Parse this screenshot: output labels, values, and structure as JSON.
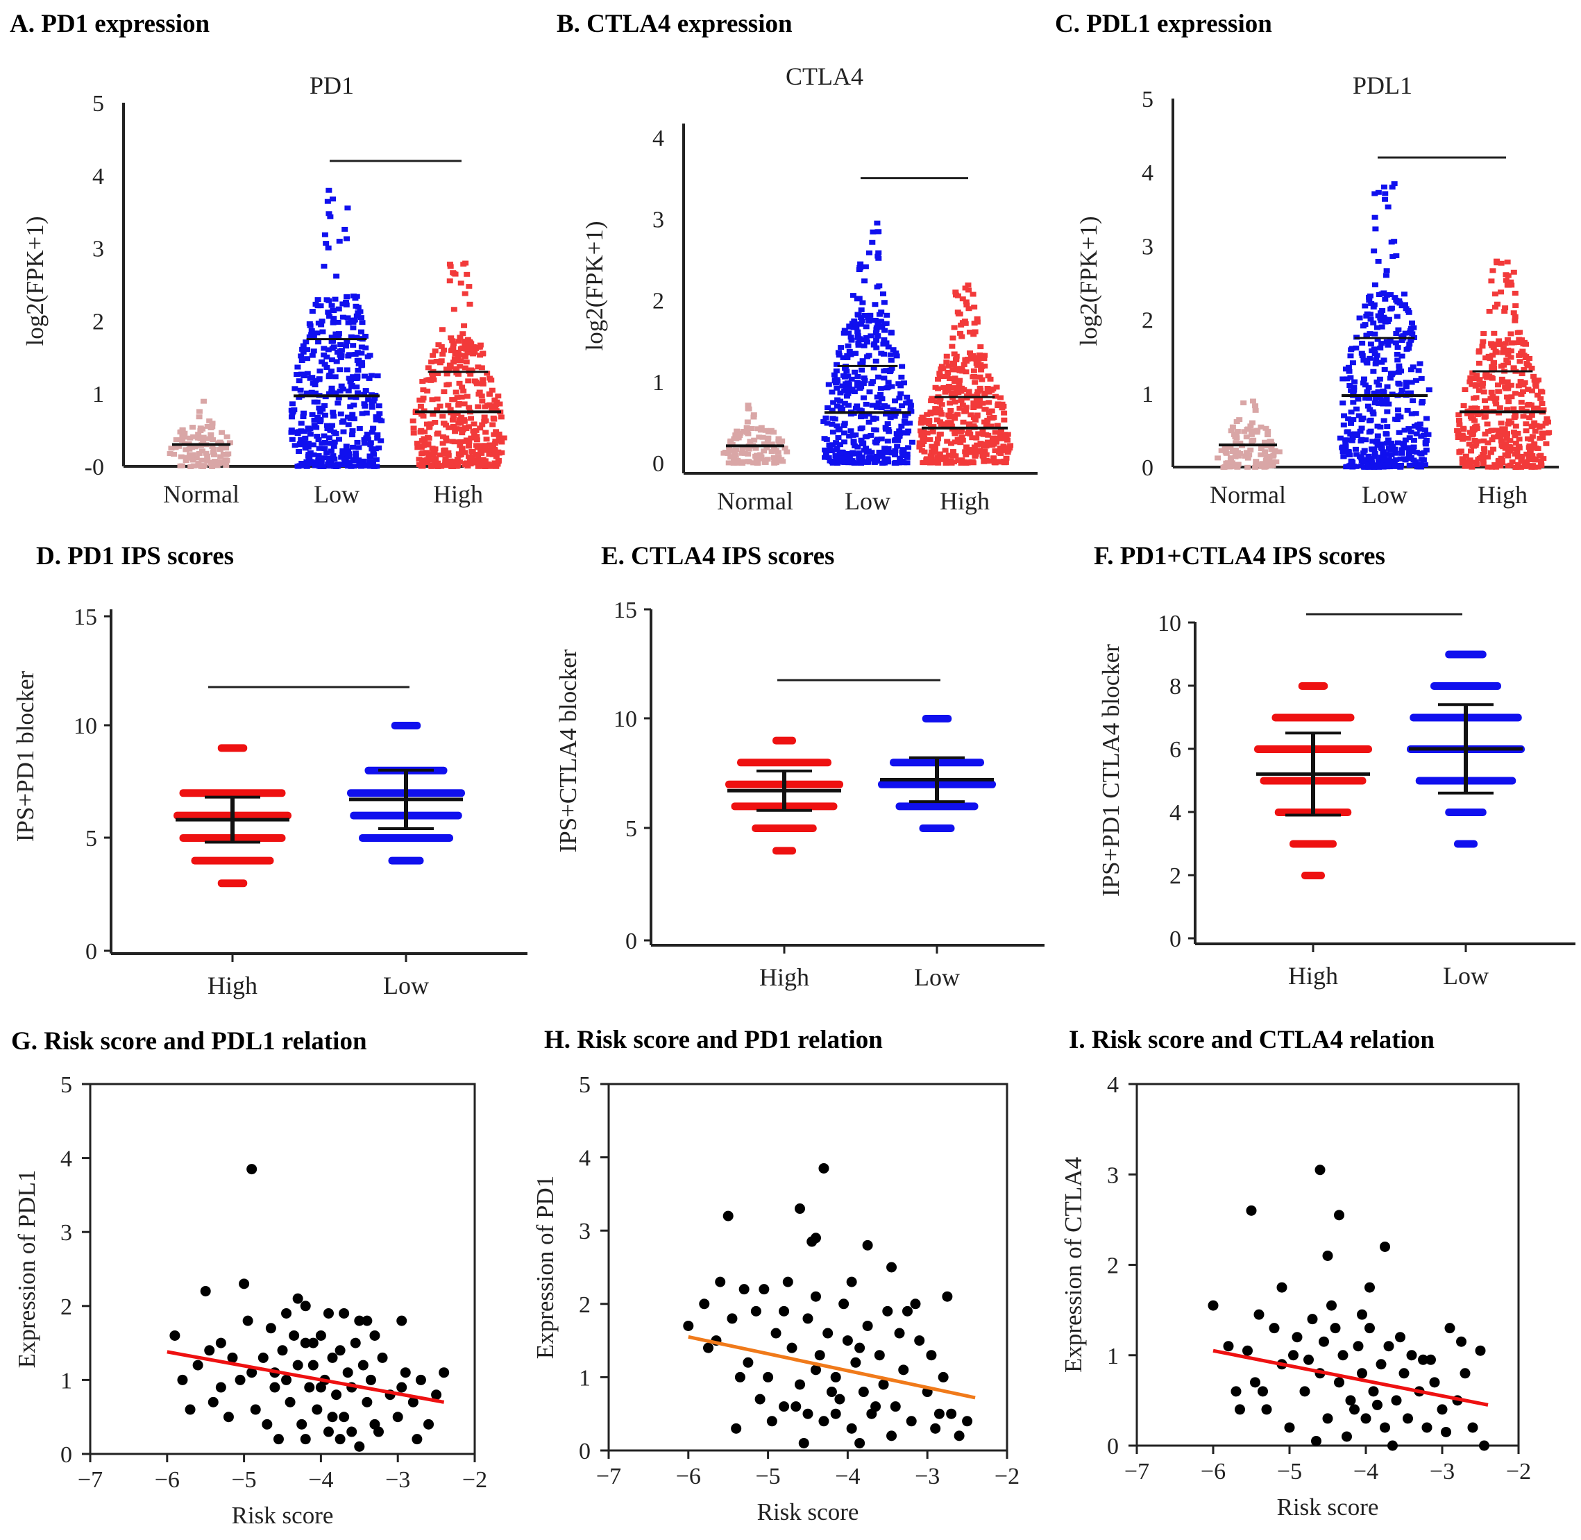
{
  "figure": {
    "panels": {
      "A": {
        "label": "A.  PD1 expression"
      },
      "B": {
        "label": "B.  CTLA4 expression"
      },
      "C": {
        "label": "C.  PDL1 expression"
      },
      "D": {
        "label": "D. PD1 IPS scores"
      },
      "E": {
        "label": "E. CTLA4 IPS scores"
      },
      "F": {
        "label": "F. PD1+CTLA4 IPS scores"
      },
      "G": {
        "label": "G. Risk score and PDL1 relation"
      },
      "H": {
        "label": "H. Risk score and PD1 relation"
      },
      "I": {
        "label": "I. Risk score and CTLA4 relation"
      }
    }
  },
  "colors": {
    "normal": "#d9a6a6",
    "low": "#1010ee",
    "high": "#f23a3a",
    "ips_high": "#ee1111",
    "ips_low": "#1010ee",
    "fit_red": "#ee1111",
    "fit_orange": "#f07a1a",
    "point": "#000000",
    "axis": "#222222"
  },
  "chart_data": [
    {
      "id": "A",
      "type": "scatter",
      "subtype": "dot-strip",
      "title": "PD1",
      "ylabel": "log2(FPK+1)",
      "categories": [
        "Normal",
        "Low",
        "High"
      ],
      "ylim": [
        0,
        5
      ],
      "yticks": [
        "-0",
        "1",
        "2",
        "3",
        "4",
        "5"
      ],
      "groups": [
        {
          "name": "Normal",
          "mean": 0.3,
          "sd_low": 0.3,
          "sd_high": 0.3,
          "min": 0.0,
          "max": 0.9
        },
        {
          "name": "Low",
          "mean": 0.97,
          "sd_low": 0.97,
          "sd_high": 1.75,
          "min": 0.0,
          "max": 3.8
        },
        {
          "name": "High",
          "mean": 0.75,
          "sd_low": 0.75,
          "sd_high": 1.3,
          "min": 0.0,
          "max": 2.8
        }
      ]
    },
    {
      "id": "B",
      "type": "scatter",
      "subtype": "dot-strip",
      "title": "CTLA4",
      "ylabel": "log2(FPK+1)",
      "categories": [
        "Normal",
        "Low",
        "High"
      ],
      "ylim": [
        0,
        4.2
      ],
      "yticks": [
        "0",
        "1",
        "2",
        "3",
        "4"
      ],
      "groups": [
        {
          "name": "Normal",
          "mean": 0.22,
          "sd_low": 0.05,
          "sd_high": 0.3,
          "min": 0.0,
          "max": 0.75
        },
        {
          "name": "Low",
          "mean": 0.65,
          "sd_low": 0.65,
          "sd_high": 1.25,
          "min": 0.0,
          "max": 3.1
        },
        {
          "name": "High",
          "mean": 0.45,
          "sd_low": 0.45,
          "sd_high": 0.85,
          "min": 0.0,
          "max": 2.3
        }
      ]
    },
    {
      "id": "C",
      "type": "scatter",
      "subtype": "dot-strip",
      "title": "PDL1",
      "ylabel": "log2(FPK+1)",
      "categories": [
        "Normal",
        "Low",
        "High"
      ],
      "ylim": [
        0,
        5
      ],
      "yticks": [
        "0",
        "1",
        "2",
        "3",
        "4",
        "5"
      ],
      "groups": [
        {
          "name": "Normal",
          "mean": 0.3,
          "sd_low": 0.3,
          "sd_high": 0.3,
          "min": 0.0,
          "max": 0.9
        },
        {
          "name": "Low",
          "mean": 0.97,
          "sd_low": 0.97,
          "sd_high": 1.75,
          "min": 0.0,
          "max": 3.85
        },
        {
          "name": "High",
          "mean": 0.75,
          "sd_low": 0.75,
          "sd_high": 1.3,
          "min": 0.0,
          "max": 2.8
        }
      ]
    },
    {
      "id": "D",
      "type": "scatter",
      "subtype": "ips-dot",
      "ylabel": "IPS+PD1 blocker",
      "categories": [
        "High",
        "Low"
      ],
      "ylim": [
        0,
        15
      ],
      "yticks": [
        "0",
        "5",
        "10",
        "15"
      ],
      "groups": [
        {
          "name": "High",
          "mean": 5.8,
          "sd": 1.0,
          "levels": [
            3,
            4,
            5,
            6,
            7,
            9
          ],
          "widths": [
            0.25,
            0.7,
            0.9,
            1.0,
            0.9,
            0.25
          ]
        },
        {
          "name": "Low",
          "mean": 6.7,
          "sd": 1.3,
          "levels": [
            4,
            5,
            6,
            7,
            8,
            10
          ],
          "widths": [
            0.3,
            0.8,
            0.95,
            1.0,
            0.7,
            0.25
          ]
        }
      ]
    },
    {
      "id": "E",
      "type": "scatter",
      "subtype": "ips-dot",
      "ylabel": "IPS+CTLA4 blocker",
      "categories": [
        "High",
        "Low"
      ],
      "ylim": [
        0,
        15
      ],
      "yticks": [
        "0",
        "5",
        "10",
        "15"
      ],
      "groups": [
        {
          "name": "High",
          "mean": 6.7,
          "sd": 0.9,
          "levels": [
            4,
            5,
            6,
            7,
            8,
            9
          ],
          "widths": [
            0.2,
            0.55,
            0.9,
            1.0,
            0.8,
            0.2
          ]
        },
        {
          "name": "Low",
          "mean": 7.2,
          "sd": 1.0,
          "levels": [
            5,
            6,
            7,
            8,
            10
          ],
          "widths": [
            0.3,
            0.7,
            1.0,
            0.8,
            0.25
          ]
        }
      ]
    },
    {
      "id": "F",
      "type": "scatter",
      "subtype": "ips-dot",
      "ylabel": "IPS+PD1  CTLA4 blocker",
      "categories": [
        "High",
        "Low"
      ],
      "ylim": [
        0,
        10
      ],
      "yticks": [
        "0",
        "2",
        "4",
        "6",
        "8",
        "10"
      ],
      "groups": [
        {
          "name": "High",
          "mean": 5.2,
          "sd": 1.3,
          "levels": [
            2,
            3,
            4,
            5,
            6,
            7,
            8
          ],
          "widths": [
            0.2,
            0.4,
            0.65,
            0.9,
            1.0,
            0.7,
            0.25
          ]
        },
        {
          "name": "Low",
          "mean": 6.0,
          "sd": 1.4,
          "levels": [
            3,
            4,
            5,
            6,
            7,
            8,
            9
          ],
          "widths": [
            0.2,
            0.35,
            0.85,
            1.0,
            0.95,
            0.6,
            0.35
          ]
        }
      ]
    },
    {
      "id": "G",
      "type": "scatter",
      "xlabel": "Risk score",
      "ylabel": "Expression of PDL1",
      "xlim": [
        -7,
        -2
      ],
      "ylim": [
        0,
        5
      ],
      "xticks": [
        "−7",
        "−6",
        "−5",
        "−4",
        "−3",
        "−2"
      ],
      "yticks": [
        "0",
        "1",
        "2",
        "3",
        "4",
        "5"
      ],
      "fit": {
        "x": [
          -6.0,
          -2.4
        ],
        "y": [
          1.38,
          0.7
        ]
      },
      "points": [
        [
          -4.9,
          3.85
        ],
        [
          -5.5,
          2.2
        ],
        [
          -5.0,
          2.3
        ],
        [
          -4.3,
          2.1
        ],
        [
          -4.2,
          2.0
        ],
        [
          -3.9,
          1.9
        ],
        [
          -3.7,
          1.9
        ],
        [
          -3.4,
          1.8
        ],
        [
          -2.95,
          1.8
        ],
        [
          -3.5,
          1.8
        ],
        [
          -5.3,
          1.5
        ],
        [
          -5.6,
          1.2
        ],
        [
          -5.8,
          1.0
        ],
        [
          -5.4,
          0.7
        ],
        [
          -5.15,
          1.3
        ],
        [
          -5.05,
          1.0
        ],
        [
          -4.95,
          1.8
        ],
        [
          -4.85,
          0.6
        ],
        [
          -4.75,
          1.3
        ],
        [
          -4.65,
          1.7
        ],
        [
          -4.6,
          0.9
        ],
        [
          -4.55,
          0.2
        ],
        [
          -4.5,
          1.4
        ],
        [
          -4.45,
          1.0
        ],
        [
          -4.4,
          0.7
        ],
        [
          -4.35,
          1.6
        ],
        [
          -4.3,
          1.2
        ],
        [
          -4.25,
          0.4
        ],
        [
          -4.2,
          1.5
        ],
        [
          -4.15,
          0.9
        ],
        [
          -4.1,
          1.2
        ],
        [
          -4.05,
          0.6
        ],
        [
          -4.0,
          1.6
        ],
        [
          -3.95,
          1.0
        ],
        [
          -3.9,
          0.3
        ],
        [
          -3.85,
          1.3
        ],
        [
          -3.8,
          0.8
        ],
        [
          -3.75,
          1.4
        ],
        [
          -3.7,
          0.5
        ],
        [
          -3.65,
          1.1
        ],
        [
          -3.6,
          0.9
        ],
        [
          -3.55,
          1.5
        ],
        [
          -3.5,
          0.1
        ],
        [
          -3.45,
          1.2
        ],
        [
          -3.4,
          0.7
        ],
        [
          -3.35,
          1.0
        ],
        [
          -3.3,
          0.4
        ],
        [
          -3.2,
          1.3
        ],
        [
          -3.1,
          0.8
        ],
        [
          -3.0,
          0.5
        ],
        [
          -2.9,
          1.1
        ],
        [
          -2.8,
          0.7
        ],
        [
          -2.7,
          1.0
        ],
        [
          -2.6,
          0.4
        ],
        [
          -2.5,
          0.8
        ],
        [
          -2.4,
          1.1
        ],
        [
          -5.9,
          1.6
        ],
        [
          -5.7,
          0.6
        ],
        [
          -5.3,
          0.9
        ],
        [
          -4.7,
          0.4
        ],
        [
          -4.2,
          0.2
        ],
        [
          -3.85,
          0.5
        ],
        [
          -3.25,
          0.3
        ],
        [
          -2.75,
          0.2
        ],
        [
          -3.6,
          0.3
        ],
        [
          -4.9,
          1.1
        ],
        [
          -5.2,
          0.5
        ],
        [
          -4.0,
          0.9
        ],
        [
          -3.3,
          1.6
        ],
        [
          -2.95,
          0.9
        ],
        [
          -4.45,
          1.9
        ],
        [
          -4.1,
          1.5
        ],
        [
          -3.75,
          0.2
        ],
        [
          -4.6,
          1.1
        ],
        [
          -5.45,
          1.4
        ]
      ]
    },
    {
      "id": "H",
      "type": "scatter",
      "xlabel": "Risk score",
      "ylabel": "Expression of PD1",
      "xlim": [
        -7,
        -2
      ],
      "ylim": [
        0,
        5
      ],
      "xticks": [
        "−7",
        "−6",
        "−5",
        "−4",
        "−3",
        "−2"
      ],
      "yticks": [
        "0",
        "1",
        "2",
        "3",
        "4",
        "5"
      ],
      "fit": {
        "x": [
          -6.0,
          -2.4
        ],
        "y": [
          1.55,
          0.72
        ]
      },
      "points": [
        [
          -4.3,
          3.85
        ],
        [
          -5.5,
          3.2
        ],
        [
          -4.6,
          3.3
        ],
        [
          -4.4,
          2.9
        ],
        [
          -4.45,
          2.85
        ],
        [
          -3.75,
          2.8
        ],
        [
          -3.45,
          2.5
        ],
        [
          -5.6,
          2.3
        ],
        [
          -5.3,
          2.2
        ],
        [
          -5.05,
          2.2
        ],
        [
          -4.75,
          2.3
        ],
        [
          -4.4,
          2.1
        ],
        [
          -3.15,
          2.0
        ],
        [
          -2.75,
          2.1
        ],
        [
          -6.0,
          1.7
        ],
        [
          -5.8,
          2.0
        ],
        [
          -5.65,
          1.5
        ],
        [
          -5.45,
          1.8
        ],
        [
          -5.25,
          1.2
        ],
        [
          -5.15,
          1.9
        ],
        [
          -5.0,
          1.0
        ],
        [
          -4.9,
          1.6
        ],
        [
          -4.8,
          0.6
        ],
        [
          -4.7,
          1.4
        ],
        [
          -4.6,
          0.9
        ],
        [
          -4.5,
          1.8
        ],
        [
          -4.4,
          1.1
        ],
        [
          -4.3,
          0.4
        ],
        [
          -4.25,
          1.6
        ],
        [
          -4.15,
          1.0
        ],
        [
          -4.1,
          0.7
        ],
        [
          -4.0,
          1.5
        ],
        [
          -3.95,
          0.3
        ],
        [
          -3.9,
          1.2
        ],
        [
          -3.8,
          0.8
        ],
        [
          -3.75,
          1.7
        ],
        [
          -3.7,
          0.5
        ],
        [
          -3.6,
          1.3
        ],
        [
          -3.55,
          0.9
        ],
        [
          -3.5,
          1.9
        ],
        [
          -3.4,
          0.6
        ],
        [
          -3.3,
          1.1
        ],
        [
          -3.2,
          0.4
        ],
        [
          -3.1,
          1.5
        ],
        [
          -3.0,
          0.8
        ],
        [
          -2.9,
          0.3
        ],
        [
          -2.8,
          1.0
        ],
        [
          -2.7,
          0.5
        ],
        [
          -2.6,
          0.2
        ],
        [
          -2.5,
          0.4
        ],
        [
          -5.4,
          0.3
        ],
        [
          -4.95,
          0.4
        ],
        [
          -4.55,
          0.1
        ],
        [
          -3.85,
          0.1
        ],
        [
          -3.45,
          0.2
        ],
        [
          -4.05,
          2.0
        ],
        [
          -3.95,
          2.3
        ],
        [
          -3.25,
          1.9
        ],
        [
          -4.8,
          1.9
        ],
        [
          -5.35,
          1.0
        ],
        [
          -5.1,
          0.7
        ],
        [
          -4.65,
          0.6
        ],
        [
          -4.2,
          0.8
        ],
        [
          -3.65,
          0.6
        ],
        [
          -2.95,
          1.3
        ],
        [
          -2.85,
          0.5
        ],
        [
          -4.35,
          1.3
        ],
        [
          -3.85,
          1.4
        ],
        [
          -4.5,
          0.5
        ],
        [
          -3.35,
          1.6
        ],
        [
          -5.75,
          1.4
        ],
        [
          -4.15,
          0.5
        ]
      ]
    },
    {
      "id": "I",
      "type": "scatter",
      "xlabel": "Risk score",
      "ylabel": "Expression of CTLA4",
      "xlim": [
        -7,
        -2
      ],
      "ylim": [
        0,
        4
      ],
      "xticks": [
        "−7",
        "−6",
        "−5",
        "−4",
        "−3",
        "−2"
      ],
      "yticks": [
        "0",
        "1",
        "2",
        "3",
        "4"
      ],
      "fit": {
        "x": [
          -6.0,
          -2.4
        ],
        "y": [
          1.05,
          0.45
        ]
      },
      "points": [
        [
          -4.6,
          3.05
        ],
        [
          -5.5,
          2.6
        ],
        [
          -4.35,
          2.55
        ],
        [
          -4.5,
          2.1
        ],
        [
          -3.75,
          2.2
        ],
        [
          -3.95,
          1.75
        ],
        [
          -5.1,
          1.75
        ],
        [
          -6.0,
          1.55
        ],
        [
          -5.8,
          1.1
        ],
        [
          -5.7,
          0.6
        ],
        [
          -5.55,
          1.05
        ],
        [
          -5.4,
          1.45
        ],
        [
          -5.3,
          0.4
        ],
        [
          -5.2,
          1.3
        ],
        [
          -5.1,
          0.9
        ],
        [
          -5.0,
          0.2
        ],
        [
          -4.9,
          1.2
        ],
        [
          -4.8,
          0.6
        ],
        [
          -4.7,
          1.4
        ],
        [
          -4.6,
          0.8
        ],
        [
          -4.5,
          0.3
        ],
        [
          -4.4,
          1.3
        ],
        [
          -4.35,
          0.7
        ],
        [
          -4.3,
          1.0
        ],
        [
          -4.25,
          0.1
        ],
        [
          -4.2,
          0.5
        ],
        [
          -4.1,
          1.1
        ],
        [
          -4.05,
          0.8
        ],
        [
          -4.0,
          0.3
        ],
        [
          -3.95,
          1.3
        ],
        [
          -3.9,
          0.6
        ],
        [
          -3.8,
          0.9
        ],
        [
          -3.75,
          0.2
        ],
        [
          -3.7,
          1.1
        ],
        [
          -3.6,
          0.5
        ],
        [
          -3.5,
          0.8
        ],
        [
          -3.45,
          0.3
        ],
        [
          -3.4,
          1.0
        ],
        [
          -3.3,
          0.6
        ],
        [
          -3.2,
          0.2
        ],
        [
          -3.1,
          0.7
        ],
        [
          -3.0,
          0.4
        ],
        [
          -2.9,
          1.3
        ],
        [
          -2.8,
          0.5
        ],
        [
          -2.7,
          0.8
        ],
        [
          -2.6,
          0.2
        ],
        [
          -2.5,
          1.05
        ],
        [
          -2.45,
          0.0
        ],
        [
          -5.45,
          0.7
        ],
        [
          -4.95,
          1.0
        ],
        [
          -4.45,
          1.55
        ],
        [
          -3.85,
          0.45
        ],
        [
          -3.55,
          1.2
        ],
        [
          -3.25,
          0.95
        ],
        [
          -2.95,
          0.15
        ],
        [
          -4.15,
          0.4
        ],
        [
          -4.65,
          0.05
        ],
        [
          -5.65,
          0.4
        ],
        [
          -4.75,
          0.95
        ],
        [
          -3.65,
          0.0
        ],
        [
          -3.15,
          0.95
        ],
        [
          -4.55,
          1.15
        ],
        [
          -5.35,
          0.6
        ],
        [
          -4.05,
          1.45
        ],
        [
          -2.75,
          1.15
        ]
      ]
    }
  ]
}
